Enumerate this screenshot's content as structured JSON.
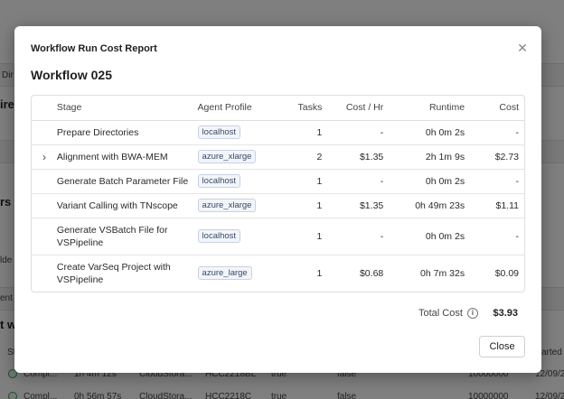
{
  "background": {
    "side_fragments": [
      "Dir",
      "ire",
      "rs",
      "lde",
      "ent",
      "t w",
      "St",
      "arted"
    ],
    "rows": [
      {
        "status": "Compl...",
        "runtime": "1h 4m 12s",
        "storage": "CloudStora...",
        "sample": "HCC2218BL",
        "flag1": "true",
        "flag2": "false",
        "number": "10000000",
        "date": "12/09/2"
      },
      {
        "status": "Compl...",
        "runtime": "0h 56m 57s",
        "storage": "CloudStora...",
        "sample": "HCC2218C",
        "flag1": "true",
        "flag2": "false",
        "number": "10000000",
        "date": "12/09/2"
      }
    ]
  },
  "modal": {
    "title": "Workflow Run Cost Report",
    "workflow_name": "Workflow 025",
    "close_icon": "close-icon",
    "table": {
      "headers": {
        "stage": "Stage",
        "agent_profile": "Agent Profile",
        "tasks": "Tasks",
        "cost_per_hr": "Cost / Hr",
        "runtime": "Runtime",
        "cost": "Cost"
      },
      "rows": [
        {
          "expandable": false,
          "stage": "Prepare Directories",
          "agent_profile": "localhost",
          "tasks": "1",
          "cost_per_hr": "-",
          "runtime": "0h 0m 2s",
          "cost": "-"
        },
        {
          "expandable": true,
          "stage": "Alignment with BWA-MEM",
          "agent_profile": "azure_xlarge",
          "tasks": "2",
          "cost_per_hr": "$1.35",
          "runtime": "2h 1m 9s",
          "cost": "$2.73"
        },
        {
          "expandable": false,
          "stage": "Generate Batch Parameter File",
          "agent_profile": "localhost",
          "tasks": "1",
          "cost_per_hr": "-",
          "runtime": "0h 0m 2s",
          "cost": "-"
        },
        {
          "expandable": false,
          "stage": "Variant Calling with TNscope",
          "agent_profile": "azure_xlarge",
          "tasks": "1",
          "cost_per_hr": "$1.35",
          "runtime": "0h 49m 23s",
          "cost": "$1.11"
        },
        {
          "expandable": false,
          "stage": "Generate VSBatch File for VSPipeline",
          "agent_profile": "localhost",
          "tasks": "1",
          "cost_per_hr": "-",
          "runtime": "0h 0m 2s",
          "cost": "-"
        },
        {
          "expandable": false,
          "stage": "Create VarSeq Project with VSPipeline",
          "agent_profile": "azure_large",
          "tasks": "1",
          "cost_per_hr": "$0.68",
          "runtime": "0h 7m 32s",
          "cost": "$0.09"
        }
      ]
    },
    "total": {
      "label": "Total Cost",
      "info_icon": "info-icon",
      "value": "$3.93"
    },
    "close_button_label": "Close"
  }
}
